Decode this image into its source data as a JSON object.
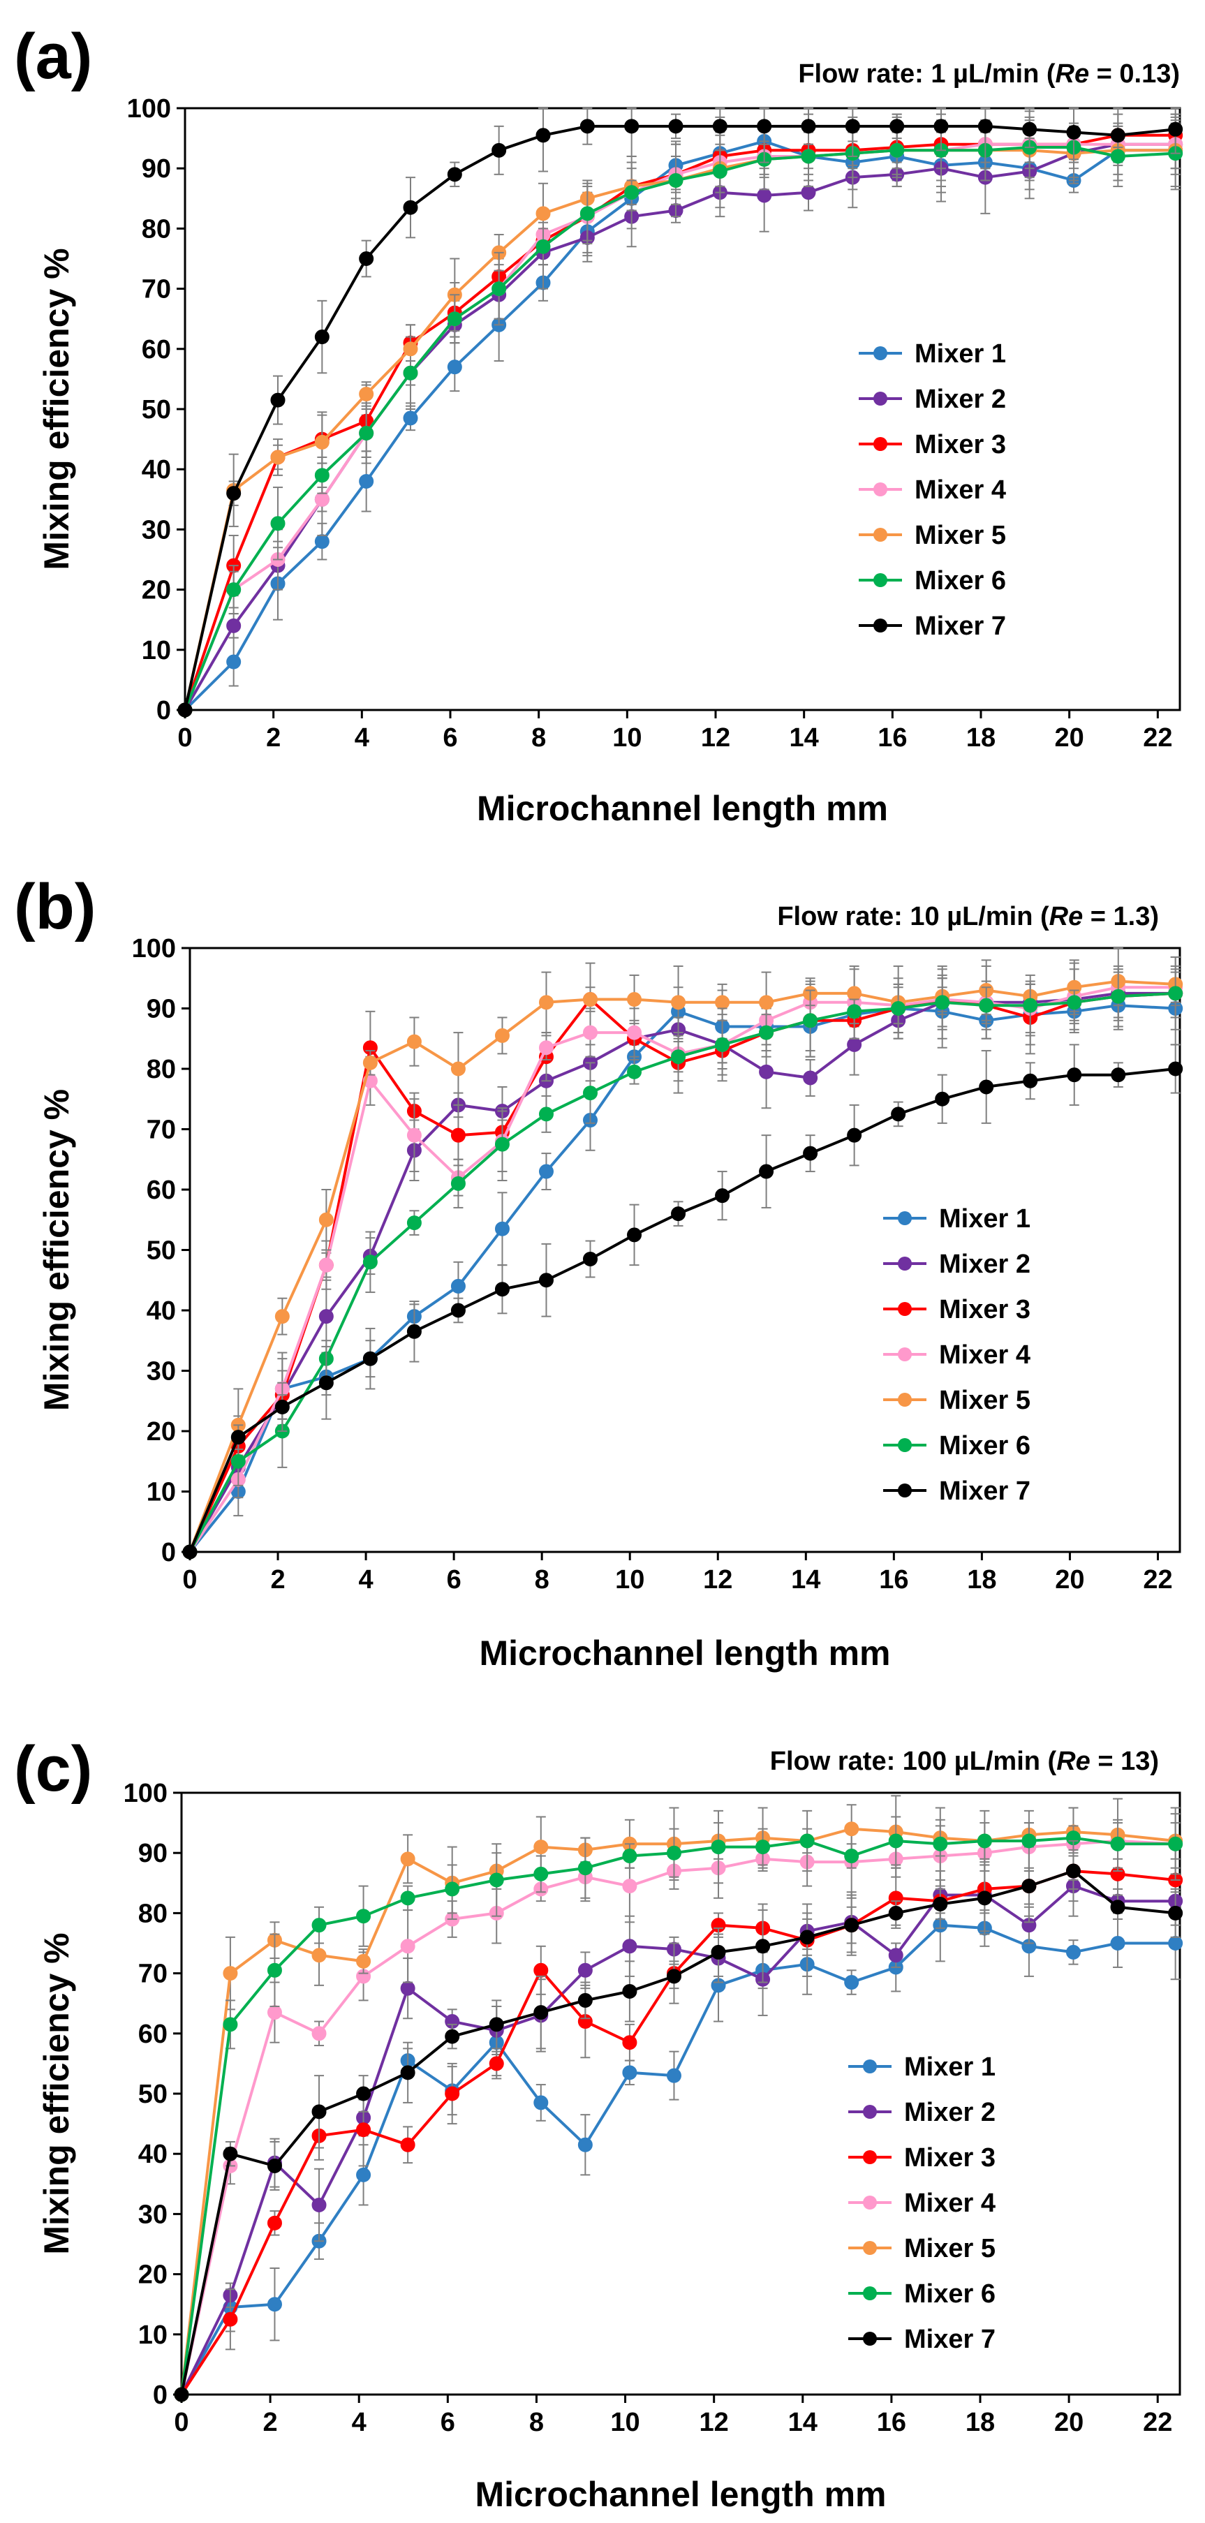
{
  "colors": {
    "Mixer 1": "#2f7fc3",
    "Mixer 2": "#7030a0",
    "Mixer 3": "#ff0000",
    "Mixer 4": "#ff99cc",
    "Mixer 5": "#f79646",
    "Mixer 6": "#00b050",
    "Mixer 7": "#000000"
  },
  "chart_data": [
    {
      "type": "line",
      "panel": "(a)",
      "flow_prefix": "Flow rate: 1 µL/min (",
      "flow_re": "Re",
      "flow_suffix": " = 0.13)",
      "xlabel": "Microchannel length  mm",
      "ylabel": "Mixing efficiency  %",
      "xlim": [
        0,
        22.5
      ],
      "ylim": [
        0,
        100
      ],
      "xticks": [
        0,
        2,
        4,
        6,
        8,
        10,
        12,
        14,
        16,
        18,
        20,
        22
      ],
      "yticks": [
        0,
        10,
        20,
        30,
        40,
        50,
        60,
        70,
        80,
        90,
        100
      ],
      "legend": [
        "Mixer 1",
        "Mixer 2",
        "Mixer 3",
        "Mixer 4",
        "Mixer 5",
        "Mixer 6",
        "Mixer 7"
      ],
      "x": [
        0,
        1.1,
        2.1,
        3.1,
        4.1,
        5.1,
        6.1,
        7.1,
        8.1,
        9.1,
        10.1,
        11.1,
        12.1,
        13.1,
        14.1,
        15.1,
        16.1,
        17.1,
        18.1,
        19.1,
        20.1,
        21.1,
        22.4
      ],
      "series": [
        {
          "name": "Mixer 1",
          "values": [
            0,
            8,
            21,
            28,
            38,
            48.5,
            57,
            64,
            71,
            79.5,
            85,
            90.5,
            92.5,
            94.5,
            92,
            91,
            92,
            90.5,
            91,
            90,
            88,
            93,
            93
          ]
        },
        {
          "name": "Mixer 2",
          "values": [
            0,
            14,
            24,
            35,
            46,
            56,
            64,
            69,
            76,
            78.5,
            82,
            83,
            86,
            85.5,
            86,
            88.5,
            89,
            90,
            88.5,
            89.5,
            92.5,
            94,
            94
          ]
        },
        {
          "name": "Mixer 3",
          "values": [
            0,
            24,
            42,
            45,
            48,
            61,
            66,
            72,
            78,
            82,
            87,
            89,
            92,
            93,
            93,
            93,
            93.5,
            94,
            94,
            94,
            94,
            95.5,
            95.5
          ]
        },
        {
          "name": "Mixer 4",
          "values": [
            0,
            20,
            25,
            35,
            46,
            56,
            65,
            70,
            79,
            82,
            86,
            89,
            91,
            92,
            92,
            92.5,
            93,
            93,
            94,
            94,
            94,
            94,
            94
          ]
        },
        {
          "name": "Mixer 5",
          "values": [
            0,
            36.5,
            42,
            44.5,
            52.5,
            60,
            69,
            76,
            82.5,
            85,
            87,
            88,
            90,
            91.5,
            92,
            92.5,
            93,
            93,
            93,
            93,
            92.5,
            93,
            93
          ]
        },
        {
          "name": "Mixer 6",
          "values": [
            0,
            20,
            31,
            39,
            46,
            56,
            65,
            70,
            77,
            82.5,
            86,
            88,
            89.5,
            91.5,
            92,
            92.5,
            93,
            93,
            93,
            93.5,
            93.5,
            92,
            92.5
          ]
        },
        {
          "name": "Mixer 7",
          "values": [
            0,
            36,
            51.5,
            62,
            75,
            83.5,
            89,
            93,
            95.5,
            97,
            97,
            97,
            97,
            97,
            97,
            97,
            97,
            97,
            97,
            96.5,
            96,
            95.5,
            96.5
          ]
        }
      ]
    },
    {
      "type": "line",
      "panel": "(b)",
      "flow_prefix": "Flow rate: 10 µL/min (",
      "flow_re": "Re",
      "flow_suffix": " = 1.3)",
      "xlabel": "Microchannel length  mm",
      "ylabel": "Mixing efficiency  %",
      "xlim": [
        0,
        22.5
      ],
      "ylim": [
        0,
        100
      ],
      "xticks": [
        0,
        2,
        4,
        6,
        8,
        10,
        12,
        14,
        16,
        18,
        20,
        22
      ],
      "yticks": [
        0,
        10,
        20,
        30,
        40,
        50,
        60,
        70,
        80,
        90,
        100
      ],
      "legend": [
        "Mixer 1",
        "Mixer 2",
        "Mixer 3",
        "Mixer 4",
        "Mixer 5",
        "Mixer 6",
        "Mixer 7"
      ],
      "x": [
        0,
        1.1,
        2.1,
        3.1,
        4.1,
        5.1,
        6.1,
        7.1,
        8.1,
        9.1,
        10.1,
        11.1,
        12.1,
        13.1,
        14.1,
        15.1,
        16.1,
        17.1,
        18.1,
        19.1,
        20.1,
        21.1,
        22.4
      ],
      "series": [
        {
          "name": "Mixer 1",
          "values": [
            0,
            10,
            27,
            29,
            32,
            39,
            44,
            53.5,
            63,
            71.5,
            82,
            89.5,
            87,
            87,
            87,
            89,
            90,
            89.5,
            88,
            89,
            89.5,
            90.5,
            90
          ]
        },
        {
          "name": "Mixer 2",
          "values": [
            0,
            14,
            26,
            39,
            49,
            66.5,
            74,
            73,
            78,
            81,
            85,
            86.5,
            84,
            79.5,
            78.5,
            84,
            88,
            91,
            91,
            91,
            91.5,
            92.5,
            92.5
          ]
        },
        {
          "name": "Mixer 3",
          "values": [
            0,
            17.5,
            26,
            47.5,
            83.5,
            73,
            69,
            69.5,
            82,
            91.5,
            85,
            81,
            83,
            86,
            88,
            88,
            90,
            91.5,
            90.5,
            88.5,
            91,
            92,
            92.5
          ]
        },
        {
          "name": "Mixer 4",
          "values": [
            0,
            12,
            27,
            47.5,
            78,
            69,
            62,
            68,
            83.5,
            86,
            86,
            82.5,
            84,
            88,
            91,
            91,
            90.5,
            91.5,
            91,
            90,
            92,
            93.5,
            93.5
          ]
        },
        {
          "name": "Mixer 5",
          "values": [
            0,
            21,
            39,
            55,
            81,
            84.5,
            80,
            85.5,
            91,
            91.5,
            91.5,
            91,
            91,
            91,
            92.5,
            92.5,
            91,
            92,
            93,
            92,
            93.5,
            94.5,
            94
          ]
        },
        {
          "name": "Mixer 6",
          "values": [
            0,
            15,
            20,
            32,
            48,
            54.5,
            61,
            67.5,
            72.5,
            76,
            79.5,
            82,
            84,
            86,
            88,
            89.5,
            90,
            91,
            90.5,
            90.5,
            91,
            92,
            92.5
          ]
        },
        {
          "name": "Mixer 7",
          "values": [
            0,
            19,
            24,
            28,
            32,
            36.5,
            40,
            43.5,
            45,
            48.5,
            52.5,
            56,
            59,
            63,
            66,
            69,
            72.5,
            75,
            77,
            78,
            79,
            79,
            80
          ]
        }
      ]
    },
    {
      "type": "line",
      "panel": "(c)",
      "flow_prefix": "Flow rate: 100 µL/min (",
      "flow_re": "Re",
      "flow_suffix": " = 13)",
      "xlabel": "Microchannel length  mm",
      "ylabel": "Mixing efficiency  %",
      "xlim": [
        0,
        22.5
      ],
      "ylim": [
        0,
        100
      ],
      "xticks": [
        0,
        2,
        4,
        6,
        8,
        10,
        12,
        14,
        16,
        18,
        20,
        22
      ],
      "yticks": [
        0,
        10,
        20,
        30,
        40,
        50,
        60,
        70,
        80,
        90,
        100
      ],
      "legend": [
        "Mixer 1",
        "Mixer 2",
        "Mixer 3",
        "Mixer 4",
        "Mixer 5",
        "Mixer 6",
        "Mixer 7"
      ],
      "x": [
        0,
        1.1,
        2.1,
        3.1,
        4.1,
        5.1,
        6.1,
        7.1,
        8.1,
        9.1,
        10.1,
        11.1,
        12.1,
        13.1,
        14.1,
        15.1,
        16.1,
        17.1,
        18.1,
        19.1,
        20.1,
        21.1,
        22.4
      ],
      "series": [
        {
          "name": "Mixer 1",
          "values": [
            0,
            14.5,
            15,
            25.5,
            36.5,
            55.5,
            50.5,
            58.5,
            48.5,
            41.5,
            53.5,
            53,
            68,
            70.5,
            71.5,
            68.5,
            71,
            78,
            77.5,
            74.5,
            73.5,
            75,
            75
          ]
        },
        {
          "name": "Mixer 2",
          "values": [
            0,
            16.5,
            38.5,
            31.5,
            46,
            67.5,
            62,
            60.5,
            63,
            70.5,
            74.5,
            74,
            72.5,
            69,
            77,
            78.5,
            73,
            83,
            83,
            78,
            84.5,
            82,
            82
          ]
        },
        {
          "name": "Mixer 3",
          "values": [
            0,
            12.5,
            28.5,
            43,
            44,
            41.5,
            50,
            55,
            70.5,
            62,
            58.5,
            70,
            78,
            77.5,
            75.5,
            78,
            82.5,
            82,
            84,
            84.5,
            87,
            86.5,
            85.5
          ]
        },
        {
          "name": "Mixer 4",
          "values": [
            0,
            38,
            63.5,
            60,
            69.5,
            74.5,
            79,
            80,
            84,
            86,
            84.5,
            87,
            87.5,
            89,
            88.5,
            88.5,
            89,
            89.5,
            90,
            91,
            91.5,
            92,
            91.5
          ]
        },
        {
          "name": "Mixer 5",
          "values": [
            0,
            70,
            75.5,
            73,
            72,
            89,
            85,
            87,
            91,
            90.5,
            91.5,
            91.5,
            92,
            92.5,
            92,
            94,
            93.5,
            92.5,
            92,
            93,
            93.5,
            93,
            92
          ]
        },
        {
          "name": "Mixer 6",
          "values": [
            0,
            61.5,
            70.5,
            78,
            79.5,
            82.5,
            84,
            85.5,
            86.5,
            87.5,
            89.5,
            90,
            91,
            91,
            92,
            89.5,
            92,
            91.5,
            92,
            92,
            92.5,
            91.5,
            91.5
          ]
        },
        {
          "name": "Mixer 7",
          "values": [
            0,
            40,
            38,
            47,
            50,
            53.5,
            59.5,
            61.5,
            63.5,
            65.5,
            67,
            69.5,
            73.5,
            74.5,
            76,
            78,
            80,
            81.5,
            82.5,
            84.5,
            87,
            81,
            80
          ]
        }
      ]
    }
  ]
}
